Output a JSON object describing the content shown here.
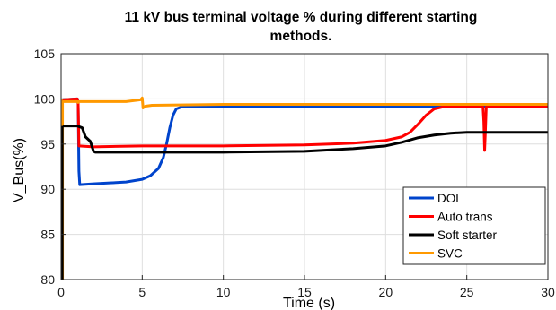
{
  "chart_data": {
    "type": "line",
    "title_lines": [
      "11 kV bus terminal voltage % during different starting",
      "methods."
    ],
    "xlabel": "Time (s)",
    "ylabel": "V_Bus(%)",
    "xlim": [
      0,
      30
    ],
    "ylim": [
      80,
      105
    ],
    "xticks": [
      0,
      5,
      10,
      15,
      20,
      25,
      30
    ],
    "yticks": [
      80,
      85,
      90,
      95,
      100,
      105
    ],
    "grid": true,
    "legend_position": "bottom-right",
    "series": [
      {
        "name": "DOL",
        "color": "#0044cc",
        "points": [
          [
            0.1,
            99.9
          ],
          [
            1.0,
            100.0
          ],
          [
            1.05,
            99.5
          ],
          [
            1.1,
            92
          ],
          [
            1.15,
            90.5
          ],
          [
            2,
            90.6
          ],
          [
            3,
            90.7
          ],
          [
            4,
            90.8
          ],
          [
            5,
            91.1
          ],
          [
            5.5,
            91.5
          ],
          [
            6,
            92.3
          ],
          [
            6.3,
            93.5
          ],
          [
            6.5,
            95
          ],
          [
            6.7,
            96.8
          ],
          [
            6.9,
            98.2
          ],
          [
            7.1,
            98.9
          ],
          [
            7.4,
            99.1
          ],
          [
            10,
            99.1
          ],
          [
            15,
            99.1
          ],
          [
            20,
            99.1
          ],
          [
            25,
            99.1
          ],
          [
            30,
            99.1
          ]
        ]
      },
      {
        "name": "Auto trans",
        "color": "#ff0000",
        "points": [
          [
            0.1,
            99.9
          ],
          [
            1.0,
            100.0
          ],
          [
            1.05,
            99.5
          ],
          [
            1.1,
            94.8
          ],
          [
            2,
            94.7
          ],
          [
            5,
            94.8
          ],
          [
            10,
            94.8
          ],
          [
            15,
            94.9
          ],
          [
            18,
            95.1
          ],
          [
            20,
            95.4
          ],
          [
            21,
            95.8
          ],
          [
            21.5,
            96.3
          ],
          [
            22,
            97.2
          ],
          [
            22.5,
            98.2
          ],
          [
            23,
            98.9
          ],
          [
            23.5,
            99.1
          ],
          [
            25,
            99.1
          ],
          [
            26,
            99.1
          ],
          [
            26.05,
            97.5
          ],
          [
            26.1,
            94.3
          ],
          [
            26.15,
            96.5
          ],
          [
            26.2,
            99.1
          ],
          [
            30,
            99.2
          ]
        ]
      },
      {
        "name": "Soft starter",
        "color": "#000000",
        "points": [
          [
            0.1,
            97.0
          ],
          [
            1.0,
            97.0
          ],
          [
            1.3,
            96.8
          ],
          [
            1.5,
            95.8
          ],
          [
            1.8,
            95.3
          ],
          [
            2.0,
            94.2
          ],
          [
            2.1,
            94.1
          ],
          [
            5,
            94.1
          ],
          [
            10,
            94.1
          ],
          [
            15,
            94.2
          ],
          [
            18,
            94.5
          ],
          [
            20,
            94.8
          ],
          [
            21,
            95.2
          ],
          [
            22,
            95.7
          ],
          [
            23,
            96.0
          ],
          [
            24,
            96.2
          ],
          [
            25,
            96.3
          ],
          [
            30,
            96.3
          ]
        ]
      },
      {
        "name": "SVC",
        "color": "#ff9900",
        "points": [
          [
            0.1,
            99.7
          ],
          [
            1.0,
            99.7
          ],
          [
            1.05,
            99.6
          ],
          [
            1.1,
            99.7
          ],
          [
            4.0,
            99.7
          ],
          [
            4.9,
            99.9
          ],
          [
            5.0,
            100.1
          ],
          [
            5.05,
            99.0
          ],
          [
            5.2,
            99.2
          ],
          [
            5.6,
            99.3
          ],
          [
            10,
            99.4
          ],
          [
            15,
            99.4
          ],
          [
            20,
            99.4
          ],
          [
            25,
            99.4
          ],
          [
            30,
            99.4
          ]
        ]
      }
    ],
    "initial_spikes": [
      {
        "x": 0.1,
        "from": 80,
        "to": 100,
        "color": "#ff9900"
      },
      {
        "x": 0.08,
        "from": 80,
        "to": 97,
        "color": "#000000"
      }
    ]
  }
}
